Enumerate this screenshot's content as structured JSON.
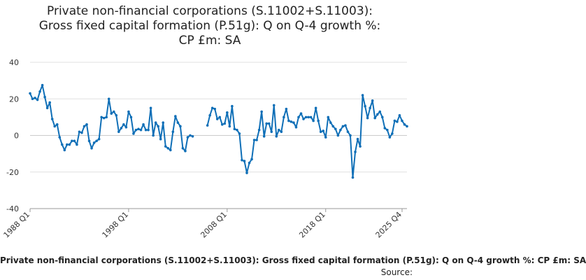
{
  "chart_data": {
    "type": "line",
    "title_lines": [
      "Private non-financial corporations (S.11002+S.11003):",
      "Gross fixed capital formation (P.51g): Q on Q-4 growth %:",
      "CP £m: SA"
    ],
    "caption": "Private non-financial corporations (S.11002+S.11003): Gross fixed capital formation (P.51g): Q on Q-4 growth %: CP £m: SA",
    "source_label": "Source:",
    "xlabel": "",
    "ylabel": "",
    "ylim": [
      -40,
      40
    ],
    "y_ticks": [
      40,
      20,
      0,
      -20,
      -40
    ],
    "x_tick_labels": [
      "1988 Q1",
      "1998 Q1",
      "2008 Q1",
      "2018 Q1",
      "2025 Q4"
    ],
    "x_tick_index": [
      0,
      40,
      80,
      120,
      151
    ],
    "grid": "horizontal",
    "line_color": "#0F6FB7",
    "grid_color": "#e0e0e0",
    "series": [
      {
        "name": "Q on Q-4 growth %",
        "start": "1988 Q1",
        "values": [
          23,
          20,
          20.5,
          19.5,
          24,
          27.5,
          21,
          15,
          18,
          9,
          5,
          6,
          -1,
          -5,
          -8,
          -5,
          -5,
          -3,
          -3,
          -5,
          2,
          1.5,
          5,
          6,
          -3,
          -7,
          -4,
          -3,
          -2,
          10,
          9.5,
          10,
          20,
          12,
          13,
          11,
          2,
          4,
          6,
          4.5,
          13,
          10,
          1,
          3,
          3.5,
          3,
          6,
          3,
          3,
          15,
          0,
          7,
          5,
          -2,
          7,
          -6,
          -7,
          -8,
          2,
          10.5,
          7,
          5,
          -7,
          -8.5,
          -1,
          0,
          -0.5,
          null,
          null,
          null,
          null,
          null,
          5.5,
          11,
          15,
          14.5,
          9,
          10,
          6,
          6.5,
          12.5,
          5,
          16,
          3.5,
          3,
          1,
          -13.5,
          -14,
          -20.5,
          -15,
          -13,
          -2.5,
          -2.5,
          3,
          13,
          -0.5,
          6.5,
          6.5,
          2,
          16.5,
          -0.5,
          3,
          2,
          10,
          14.5,
          8,
          7.5,
          7,
          4.5,
          10,
          12,
          9,
          10,
          10,
          10,
          8,
          15,
          8,
          2,
          2.5,
          -1,
          10,
          7,
          5,
          3.5,
          0,
          3,
          5,
          5.5,
          2,
          0,
          -23,
          -9,
          -2,
          -6,
          22,
          16,
          9.5,
          15,
          19,
          9.5,
          11.5,
          13,
          10,
          4,
          3,
          -1,
          1,
          8,
          7.5,
          11,
          8,
          6,
          5
        ]
      }
    ]
  }
}
